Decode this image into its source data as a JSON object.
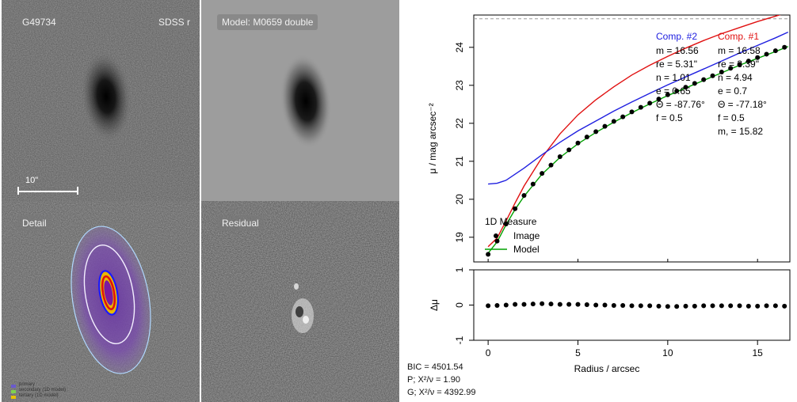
{
  "panels": {
    "image": {
      "label": "G49734"
    },
    "band": {
      "label": "SDSS r"
    },
    "model": {
      "label": "Model: M0659 double"
    },
    "detail": {
      "label": "Detail"
    },
    "residual": {
      "label": "Residual"
    }
  },
  "scale_bar": {
    "label": "10\""
  },
  "detail_legend": [
    {
      "text": "primary",
      "color": "#6a5acd"
    },
    {
      "text": "secondary (1D model)",
      "color": "#7fd34e"
    },
    {
      "text": "tertiary (1D model)",
      "color": "#e8c400"
    }
  ],
  "fit_stats": {
    "bic": "BIC = 4501.54",
    "p": "P; X²/ν = 1.90",
    "g": "G; X²/ν = 4392.99"
  },
  "chart_data": {
    "type": "line",
    "xlabel": "Radius / arcsec",
    "ylabel": "μ / mag arcsec⁻²",
    "xlim": [
      -0.8,
      16.8
    ],
    "ylim": [
      24.85,
      18.35
    ],
    "y_inverted": true,
    "xticks": [
      0,
      5,
      10,
      15
    ],
    "yticks": [
      19,
      20,
      21,
      22,
      23,
      24
    ],
    "sky_level": 24.75,
    "series": [
      {
        "name": "Image",
        "marker": "dot",
        "color": "#000000",
        "x": [
          0,
          0.5,
          1.0,
          1.5,
          2.0,
          2.5,
          3.0,
          3.5,
          4.0,
          4.5,
          5.0,
          5.5,
          6.0,
          6.5,
          7.0,
          7.5,
          8.0,
          8.5,
          9.0,
          9.5,
          10.0,
          10.5,
          11.0,
          11.5,
          12.0,
          12.5,
          13.0,
          13.5,
          14.0,
          14.5,
          15.0,
          15.5,
          16.0,
          16.5
        ],
        "values": [
          18.55,
          18.9,
          19.35,
          19.75,
          20.1,
          20.4,
          20.68,
          20.9,
          21.12,
          21.3,
          21.48,
          21.64,
          21.78,
          21.92,
          22.05,
          22.17,
          22.3,
          22.42,
          22.53,
          22.64,
          22.75,
          22.85,
          22.95,
          23.05,
          23.15,
          23.25,
          23.35,
          23.45,
          23.55,
          23.64,
          23.73,
          23.82,
          23.91,
          24.0
        ]
      },
      {
        "name": "Model",
        "color": "#00a000",
        "x": [
          0,
          0.5,
          1.0,
          1.5,
          2.0,
          3.0,
          4.0,
          5.0,
          6.0,
          7.0,
          8.0,
          9.0,
          10.0,
          11.0,
          12.0,
          13.0,
          14.0,
          15.0,
          16.0,
          16.7
        ],
        "values": [
          18.58,
          18.88,
          19.33,
          19.73,
          20.08,
          20.66,
          21.1,
          21.46,
          21.76,
          22.03,
          22.28,
          22.51,
          22.73,
          22.93,
          23.13,
          23.33,
          23.53,
          23.71,
          23.89,
          24.02
        ]
      },
      {
        "name": "Comp. #1",
        "color": "#e01010",
        "x": [
          0,
          0.5,
          1.0,
          1.5,
          2.0,
          3.0,
          4.0,
          5.0,
          6.0,
          7.0,
          8.0,
          9.0,
          10.0,
          11.0,
          12.0,
          13.0,
          14.0,
          15.0,
          16.0,
          16.7
        ],
        "values": [
          18.75,
          18.98,
          19.43,
          19.9,
          20.35,
          21.1,
          21.72,
          22.22,
          22.62,
          22.96,
          23.27,
          23.53,
          23.76,
          23.98,
          24.18,
          24.36,
          24.52,
          24.68,
          24.82,
          24.92
        ]
      },
      {
        "name": "Comp. #2",
        "color": "#2020e0",
        "x": [
          0,
          0.5,
          1.0,
          2.0,
          3.0,
          4.0,
          5.0,
          6.0,
          7.0,
          8.0,
          9.0,
          10.0,
          11.0,
          12.0,
          13.0,
          14.0,
          15.0,
          16.0,
          16.7
        ],
        "values": [
          20.4,
          20.42,
          20.5,
          20.82,
          21.17,
          21.5,
          21.8,
          22.06,
          22.32,
          22.56,
          22.79,
          23.01,
          23.22,
          23.43,
          23.64,
          23.85,
          24.05,
          24.25,
          24.4
        ]
      }
    ],
    "components": [
      {
        "title": "Comp. #2",
        "color": "#2020e0",
        "lines": [
          "m = 16.56",
          "re = 5.31\"",
          "n = 1.01",
          "e = 0.65",
          "Θ = -87.76°",
          "f = 0.5"
        ]
      },
      {
        "title": "Comp. #1",
        "color": "#e01010",
        "lines": [
          "m = 16.58",
          "re = 3.39\"",
          "n = 4.94",
          "e = 0.7",
          "Θ = -77.18°",
          "f = 0.5",
          "m, = 15.82"
        ]
      }
    ],
    "legend": {
      "title": "1D Measure",
      "entries": [
        {
          "label": "Image",
          "kind": "dot"
        },
        {
          "label": "Model",
          "kind": "line",
          "color": "#00a000"
        }
      ]
    },
    "residuals": {
      "ylabel": "Δμ",
      "ylim": [
        -1,
        1
      ],
      "yticks": [
        -1,
        0,
        1
      ],
      "x": [
        0,
        0.5,
        1.0,
        1.5,
        2.0,
        2.5,
        3.0,
        3.5,
        4.0,
        4.5,
        5.0,
        5.5,
        6.0,
        6.5,
        7.0,
        7.5,
        8.0,
        8.5,
        9.0,
        9.5,
        10.0,
        10.5,
        11.0,
        11.5,
        12.0,
        12.5,
        13.0,
        13.5,
        14.0,
        14.5,
        15.0,
        15.5,
        16.0,
        16.5
      ],
      "values": [
        -0.02,
        -0.01,
        0.0,
        0.02,
        0.02,
        0.03,
        0.04,
        0.03,
        0.02,
        0.02,
        0.02,
        0.01,
        0.0,
        0.0,
        -0.01,
        -0.01,
        -0.02,
        -0.02,
        -0.02,
        -0.03,
        -0.04,
        -0.04,
        -0.03,
        -0.03,
        -0.02,
        -0.02,
        -0.02,
        -0.02,
        -0.02,
        -0.03,
        -0.03,
        -0.02,
        -0.02,
        -0.03
      ]
    }
  }
}
